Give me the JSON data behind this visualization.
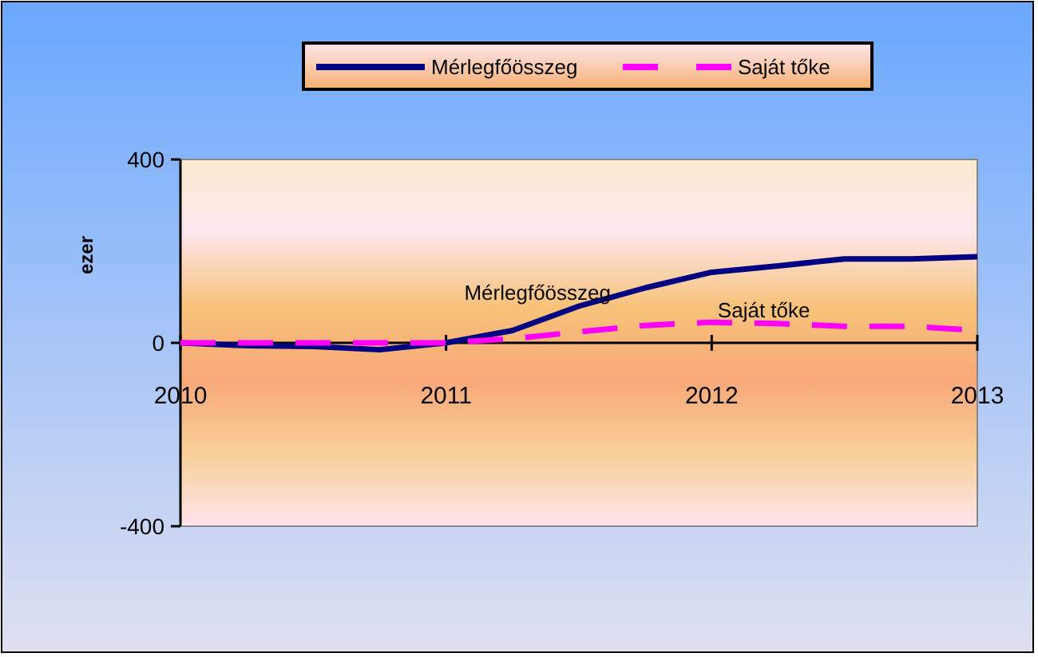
{
  "chart_data": {
    "type": "line",
    "ylabel": "ezer",
    "x": [
      2010,
      2010.25,
      2010.5,
      2010.75,
      2011,
      2011.25,
      2011.5,
      2011.75,
      2012,
      2012.25,
      2012.5,
      2012.75,
      2013
    ],
    "xlim": [
      2010,
      2013
    ],
    "xticks": [
      2010,
      2011,
      2012,
      2013
    ],
    "ylim": [
      -400,
      400
    ],
    "yticks": [
      {
        "value": -400,
        "label": "-400"
      },
      0,
      400
    ],
    "legend": "top",
    "series": [
      {
        "name": "Mérlegfőösszeg",
        "color": "#000080",
        "line_style": "solid",
        "values": [
          0,
          -6,
          -8,
          -15,
          0,
          27,
          80,
          120,
          154,
          168,
          183,
          183,
          188
        ]
      },
      {
        "name": "Saját tőke",
        "color": "#ff00ff",
        "line_style": "dashed",
        "values": [
          0,
          0,
          0,
          0,
          0,
          9,
          24,
          38,
          45,
          42,
          36,
          36,
          27
        ]
      }
    ],
    "annotations": [
      {
        "text": "Mérlegfőösszeg",
        "x": 2011.5,
        "y": 80
      },
      {
        "text": "Saját tőke",
        "x": 2012.25,
        "y": 42
      }
    ]
  }
}
